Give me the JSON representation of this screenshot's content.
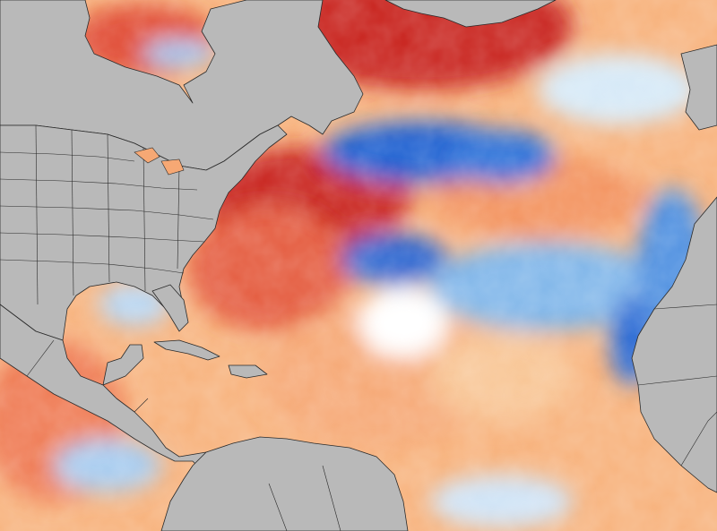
{
  "map": {
    "type": "sea-surface-temperature-anomaly",
    "region": "North Atlantic",
    "land_color": "#b9b9b9",
    "border_color": "#2a2a2a",
    "palette": {
      "strong_warm": "#c61f1f",
      "warm": "#e8553a",
      "mild_warm": "#f6a06a",
      "slight_warm": "#fbd8a8",
      "neutral": "#ffffff",
      "slight_cool": "#cfe5f6",
      "cool": "#7fb4e8",
      "strong_cool": "#1a5fd0"
    }
  }
}
